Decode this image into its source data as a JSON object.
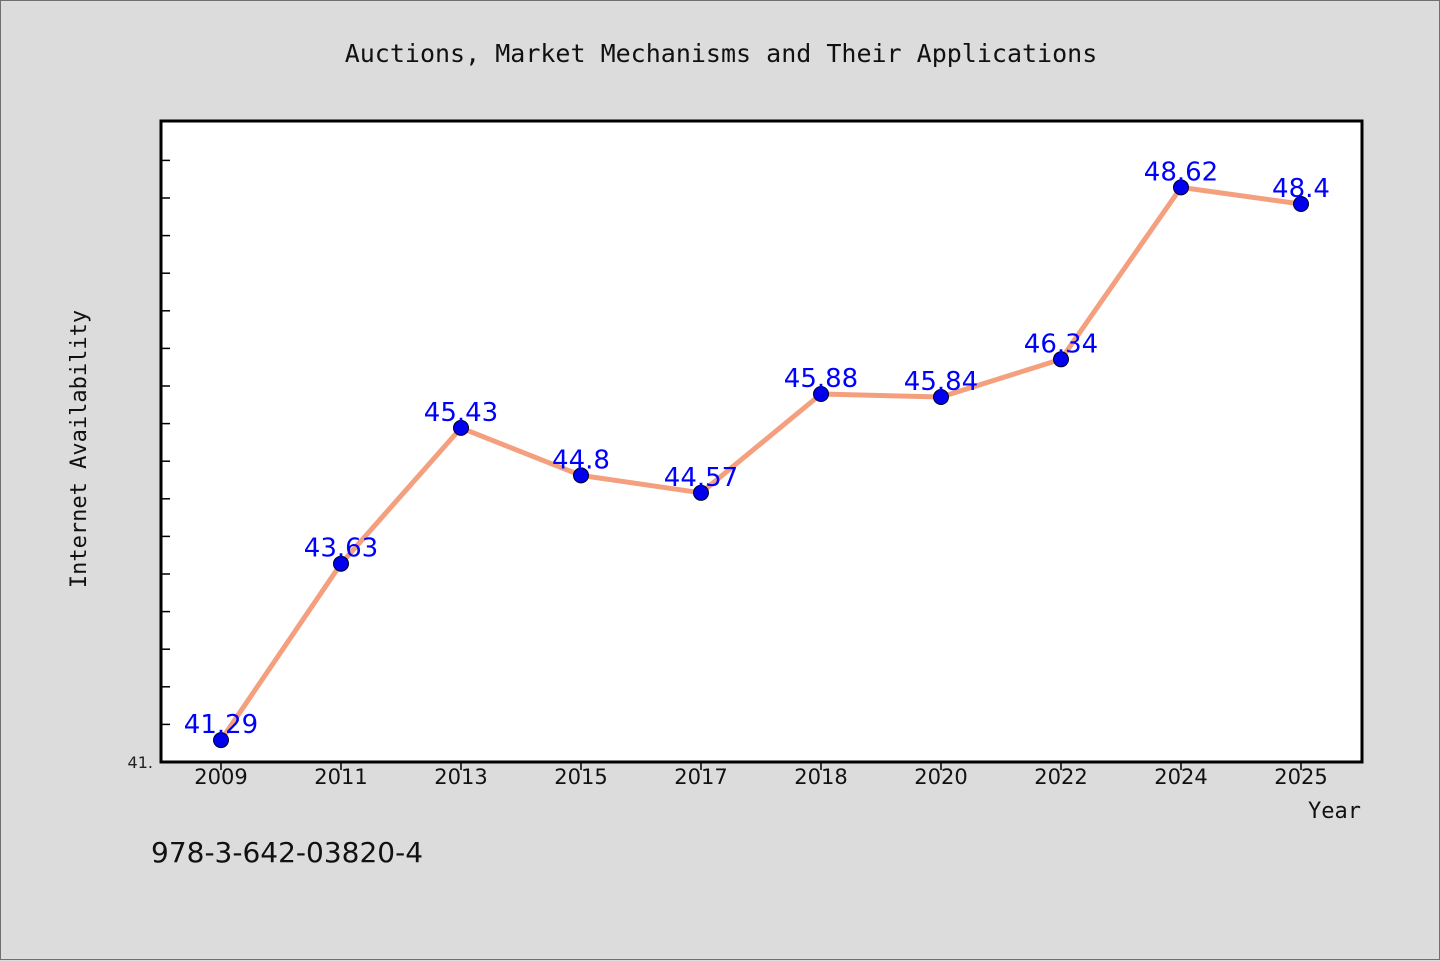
{
  "chart_data": {
    "type": "line",
    "title": "Auctions, Market Mechanisms and Their Applications",
    "xlabel": "Year",
    "ylabel": "Internet Availability",
    "categories": [
      "2009",
      "2011",
      "2013",
      "2015",
      "2017",
      "2018",
      "2020",
      "2022",
      "2024",
      "2025"
    ],
    "values": [
      41.29,
      43.63,
      45.43,
      44.8,
      44.57,
      45.88,
      45.84,
      46.34,
      48.62,
      48.4
    ],
    "data_labels": [
      "41.29",
      "43.63",
      "45.43",
      "44.8",
      "44.57",
      "45.88",
      "45.84",
      "46.34",
      "48.62",
      "48.4"
    ],
    "ylim": [
      41.0,
      49.5
    ],
    "y_tick_label": "41.",
    "grid": false,
    "legend": "none",
    "line_color": "#f4a07f",
    "marker_color": "#0000ee",
    "label_color": "#0000ff"
  },
  "footnote": "978-3-642-03820-4"
}
